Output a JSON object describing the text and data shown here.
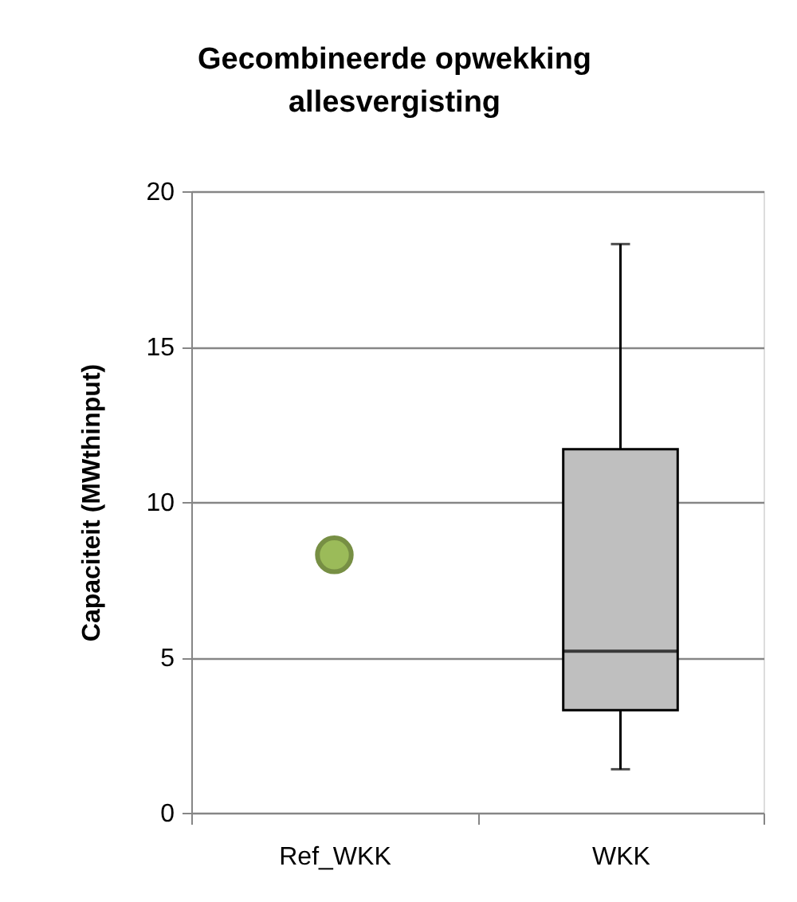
{
  "chart_data": {
    "type": "box",
    "title": "Gecombineerde opwekking allesvergisting",
    "ylabel": "Capaciteit (MWthinput)",
    "categories": [
      "Ref_WKK",
      "WKK"
    ],
    "series": [
      {
        "type": "box",
        "color": "#bfbfbf",
        "boxes": [
          null,
          {
            "low": 1.4,
            "q1": 3.3,
            "median": 5.2,
            "q3": 11.7,
            "high": 18.3
          }
        ]
      },
      {
        "type": "scatter",
        "x": [
          "Ref_WKK"
        ],
        "values": [
          8.3
        ],
        "color": "#9bbb59",
        "marker": "circle"
      }
    ],
    "ylim": [
      0,
      20
    ],
    "yticks": [
      0,
      5,
      10,
      15,
      20
    ],
    "grid": "y"
  }
}
